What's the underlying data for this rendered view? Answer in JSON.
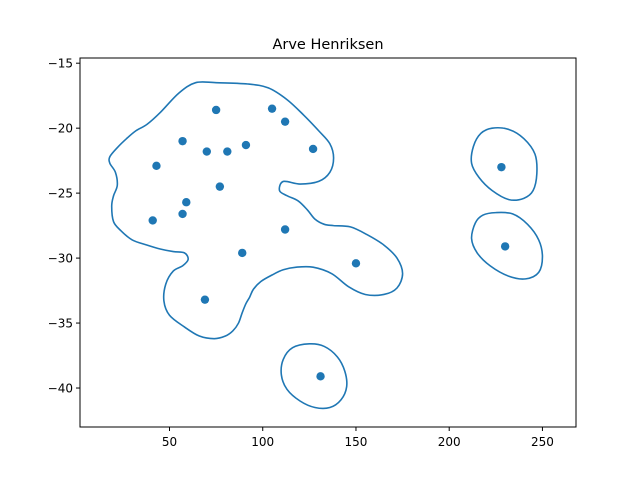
{
  "chart_data": {
    "type": "scatter",
    "title": "Arve Henriksen",
    "xlabel": "",
    "ylabel": "",
    "xlim": [
      2,
      268
    ],
    "ylim": [
      -43,
      -14.6
    ],
    "xticks": [
      50,
      100,
      150,
      200,
      250
    ],
    "yticks": [
      -15,
      -20,
      -25,
      -30,
      -35,
      -40
    ],
    "grid": false,
    "colors": {
      "series": "#1f77b4",
      "axes": "#000000"
    },
    "points": [
      {
        "x": 75,
        "y": -18.6
      },
      {
        "x": 105,
        "y": -18.5
      },
      {
        "x": 112,
        "y": -19.5
      },
      {
        "x": 57,
        "y": -21.0
      },
      {
        "x": 70,
        "y": -21.8
      },
      {
        "x": 81,
        "y": -21.8
      },
      {
        "x": 91,
        "y": -21.3
      },
      {
        "x": 127,
        "y": -21.6
      },
      {
        "x": 43,
        "y": -22.9
      },
      {
        "x": 77,
        "y": -24.5
      },
      {
        "x": 59,
        "y": -25.7
      },
      {
        "x": 57,
        "y": -26.6
      },
      {
        "x": 41,
        "y": -27.1
      },
      {
        "x": 112,
        "y": -27.8
      },
      {
        "x": 89,
        "y": -29.6
      },
      {
        "x": 150,
        "y": -30.4
      },
      {
        "x": 69,
        "y": -33.2
      },
      {
        "x": 131,
        "y": -39.1
      },
      {
        "x": 228,
        "y": -23.0
      },
      {
        "x": 230,
        "y": -29.1
      }
    ],
    "contours": [
      [
        [
          45,
          -18.8
        ],
        [
          55,
          -17.3
        ],
        [
          64,
          -16.5
        ],
        [
          75,
          -16.5
        ],
        [
          92,
          -16.6
        ],
        [
          103,
          -16.9
        ],
        [
          113,
          -17.8
        ],
        [
          122,
          -19.0
        ],
        [
          130,
          -20.2
        ],
        [
          136,
          -21.2
        ],
        [
          138,
          -22.3
        ],
        [
          136,
          -23.4
        ],
        [
          130,
          -24.1
        ],
        [
          120,
          -24.3
        ],
        [
          111,
          -24.1
        ],
        [
          109,
          -24.8
        ],
        [
          113,
          -25.2
        ],
        [
          119,
          -25.6
        ],
        [
          124,
          -26.3
        ],
        [
          128,
          -27.0
        ],
        [
          133,
          -27.4
        ],
        [
          138,
          -27.5
        ],
        [
          147,
          -27.6
        ],
        [
          156,
          -28.2
        ],
        [
          165,
          -29.0
        ],
        [
          172,
          -30.0
        ],
        [
          175,
          -31.2
        ],
        [
          172,
          -32.3
        ],
        [
          165,
          -32.8
        ],
        [
          155,
          -32.8
        ],
        [
          146,
          -32.2
        ],
        [
          137,
          -31.2
        ],
        [
          127,
          -30.7
        ],
        [
          118,
          -30.7
        ],
        [
          111,
          -30.9
        ],
        [
          105,
          -31.3
        ],
        [
          99,
          -31.8
        ],
        [
          95,
          -32.4
        ],
        [
          93,
          -33.0
        ],
        [
          91,
          -33.5
        ],
        [
          89,
          -34.2
        ],
        [
          87,
          -35.0
        ],
        [
          84,
          -35.6
        ],
        [
          80,
          -36.0
        ],
        [
          74,
          -36.2
        ],
        [
          66,
          -36.0
        ],
        [
          58,
          -35.3
        ],
        [
          50,
          -34.4
        ],
        [
          47,
          -33.3
        ],
        [
          48,
          -32.0
        ],
        [
          52,
          -31.0
        ],
        [
          57,
          -30.6
        ],
        [
          60,
          -30.1
        ],
        [
          58,
          -29.6
        ],
        [
          52,
          -29.5
        ],
        [
          45,
          -29.3
        ],
        [
          38,
          -29.0
        ],
        [
          30,
          -28.6
        ],
        [
          24,
          -27.9
        ],
        [
          20,
          -27.2
        ],
        [
          19,
          -26.0
        ],
        [
          20,
          -25.2
        ],
        [
          22,
          -24.4
        ],
        [
          21,
          -23.4
        ],
        [
          18,
          -22.7
        ],
        [
          18,
          -22.2
        ],
        [
          22,
          -21.5
        ],
        [
          27,
          -20.8
        ],
        [
          32,
          -20.2
        ],
        [
          38,
          -19.7
        ],
        [
          45,
          -18.8
        ]
      ],
      [
        [
          223,
          -20.0
        ],
        [
          232,
          -20.1
        ],
        [
          240,
          -20.8
        ],
        [
          246,
          -22.0
        ],
        [
          247,
          -23.5
        ],
        [
          245,
          -24.8
        ],
        [
          240,
          -25.4
        ],
        [
          232,
          -25.5
        ],
        [
          223,
          -24.8
        ],
        [
          216,
          -23.8
        ],
        [
          212,
          -22.7
        ],
        [
          213,
          -21.4
        ],
        [
          217,
          -20.4
        ],
        [
          223,
          -20.0
        ]
      ],
      [
        [
          225,
          -26.5
        ],
        [
          234,
          -26.6
        ],
        [
          242,
          -27.4
        ],
        [
          248,
          -28.6
        ],
        [
          250,
          -29.9
        ],
        [
          248,
          -31.1
        ],
        [
          241,
          -31.6
        ],
        [
          232,
          -31.4
        ],
        [
          222,
          -30.6
        ],
        [
          215,
          -29.6
        ],
        [
          212,
          -28.5
        ],
        [
          214,
          -27.3
        ],
        [
          218,
          -26.7
        ],
        [
          225,
          -26.5
        ]
      ],
      [
        [
          125,
          -36.6
        ],
        [
          133,
          -36.8
        ],
        [
          140,
          -37.6
        ],
        [
          144,
          -38.7
        ],
        [
          145,
          -39.9
        ],
        [
          142,
          -40.9
        ],
        [
          136,
          -41.5
        ],
        [
          128,
          -41.5
        ],
        [
          120,
          -41.0
        ],
        [
          113,
          -40.1
        ],
        [
          110,
          -39.0
        ],
        [
          111,
          -37.8
        ],
        [
          116,
          -36.9
        ],
        [
          125,
          -36.6
        ]
      ]
    ]
  }
}
